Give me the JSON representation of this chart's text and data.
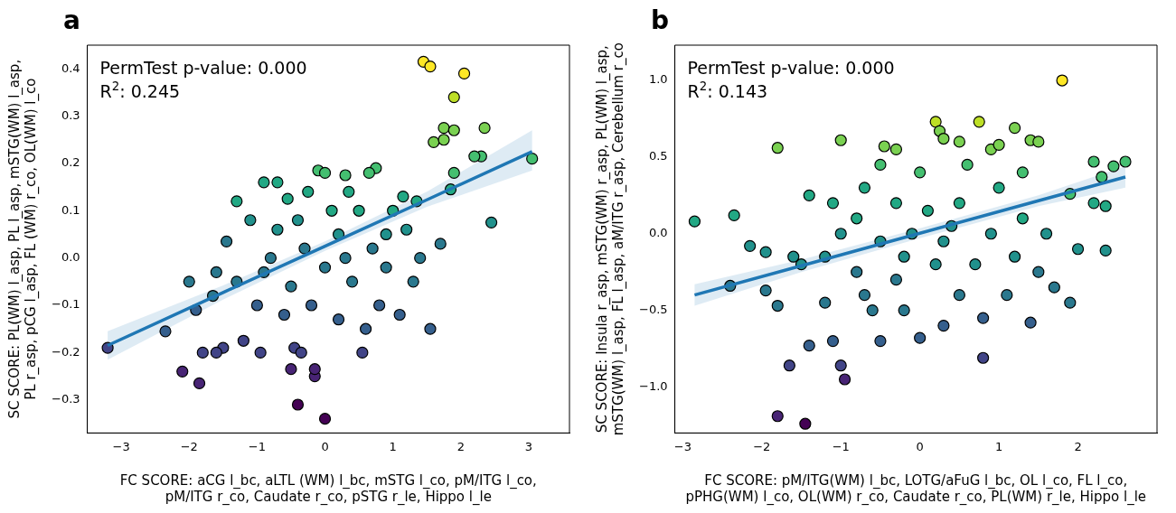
{
  "chart_data": [
    {
      "type": "scatter",
      "title": "a",
      "xlabel": "FC SCORE: aCG l_bc, aLTL (WM) l_bc, mSTG l_co, pM/ITG l_co,\npM/ITG r_co, Caudate r_co, pSTG r_le, Hippo l_le",
      "ylabel": "SC SCORE: PL(WM) l_asp, PL l_asp, mSTG(WM) l_asp,\nPL r_asp, pCG l_asp, FL (WM) r_co, OL(WM) l_co",
      "annotations": [
        "PermTest p-value: 0.000",
        "R$^{2}$: 0.245"
      ],
      "xlim": [
        -3.5,
        3.6
      ],
      "xticks": [
        {
          "value": -3,
          "label": "−3"
        },
        {
          "value": -2,
          "label": "−2"
        },
        {
          "value": -1,
          "label": "−1"
        },
        0,
        1,
        2,
        3
      ],
      "ylim": [
        -0.37,
        0.45
      ],
      "yticks": [
        {
          "value": -0.3,
          "label": "−0.3"
        },
        {
          "value": -0.2,
          "label": "−0.2"
        },
        {
          "value": -0.1,
          "label": "−0.1"
        },
        {
          "value": 0,
          "label": "0.0"
        },
        0.1,
        0.2,
        0.3,
        0.4
      ],
      "grid": false,
      "legend": false,
      "series": [
        {
          "marker": "circle",
          "color": "#21918c",
          "x": [
            1.45,
            1.55,
            2.05,
            1.9,
            1.75,
            1.9,
            2.35,
            2.3,
            2.2,
            1.6,
            1.75,
            3.05,
            2.45,
            1.9,
            1.85,
            -3.2,
            -2.1,
            -1.85,
            -1.8,
            -1.5,
            -1.6,
            -0.4,
            0.0,
            -0.15,
            -0.15,
            -0.5,
            -0.45,
            -0.35,
            -0.95,
            -1.2,
            0.55,
            1.55,
            1.1,
            0.8,
            -2.35,
            -1.9,
            -1.65,
            -1.3,
            -0.9,
            -0.7,
            -0.55,
            -0.1,
            0.0,
            0.3,
            0.75,
            0.65,
            1.15,
            1.35,
            1.2,
            -1.45,
            -1.1,
            -0.7,
            -0.3,
            0.2,
            0.5,
            0.9,
            1.4,
            1.7,
            -1.3,
            -0.9,
            -0.5,
            0,
            0.4,
            0.9,
            1.3,
            -1.0,
            -0.6,
            -0.2,
            0.2,
            0.6,
            -0.8,
            0.1,
            -0.4,
            0.3,
            0.7,
            -1.6,
            -2.0,
            1.0,
            0.35,
            -0.25
          ],
          "values": [
            0.415,
            0.405,
            0.39,
            0.34,
            0.275,
            0.27,
            0.275,
            0.215,
            0.215,
            0.245,
            0.25,
            0.21,
            0.075,
            0.18,
            0.145,
            -0.19,
            -0.24,
            -0.265,
            -0.2,
            -0.19,
            -0.2,
            -0.31,
            -0.34,
            -0.25,
            -0.235,
            -0.235,
            -0.19,
            -0.2,
            -0.2,
            -0.175,
            -0.2,
            -0.15,
            -0.12,
            -0.1,
            -0.155,
            -0.11,
            -0.08,
            0.12,
            0.16,
            0.16,
            0.125,
            0.185,
            0.18,
            0.175,
            0.19,
            0.18,
            0.13,
            0.12,
            0.06,
            0.035,
            0.08,
            0.06,
            0.02,
            0.05,
            0.1,
            0.05,
            0.0,
            0.03,
            -0.05,
            -0.03,
            -0.06,
            -0.02,
            -0.05,
            -0.02,
            -0.05,
            -0.1,
            -0.12,
            -0.1,
            -0.13,
            -0.15,
            0.0,
            0.1,
            0.08,
            0.0,
            0.02,
            -0.03,
            -0.05,
            0.1,
            0.14,
            0.14
          ],
          "colors": [
            "#fde725",
            "#fde725",
            "#fde725",
            "#bddf26",
            "#7ad151",
            "#7ad151",
            "#7ad151",
            "#44bf70",
            "#44bf70",
            "#7ad151",
            "#7ad151",
            "#44bf70",
            "#21918c",
            "#44bf70",
            "#22a884",
            "#414487",
            "#482475",
            "#482475",
            "#414487",
            "#414487",
            "#414487",
            "#440154",
            "#440154",
            "#482475",
            "#482475",
            "#482475",
            "#414487",
            "#414487",
            "#414487",
            "#414487",
            "#414487",
            "#355f8d",
            "#355f8d",
            "#355f8d",
            "#355f8d",
            "#355f8d",
            "#2a788e",
            "#22a884",
            "#22a884",
            "#22a884",
            "#22a884",
            "#44bf70",
            "#44bf70",
            "#44bf70",
            "#44bf70",
            "#44bf70",
            "#22a884",
            "#22a884",
            "#21918c",
            "#2a788e",
            "#21918c",
            "#21918c",
            "#2a788e",
            "#21918c",
            "#22a884",
            "#21918c",
            "#2a788e",
            "#2a788e",
            "#2a788e",
            "#2a788e",
            "#2a788e",
            "#2a788e",
            "#2a788e",
            "#2a788e",
            "#2a788e",
            "#355f8d",
            "#355f8d",
            "#355f8d",
            "#355f8d",
            "#355f8d",
            "#2a788e",
            "#22a884",
            "#21918c",
            "#2a788e",
            "#2a788e",
            "#2a788e",
            "#2a788e",
            "#22a884",
            "#22a884",
            "#22a884"
          ]
        },
        {
          "type": "line",
          "marker": "none",
          "color": "#1f77b4",
          "x": [
            -3.2,
            -1.5,
            0,
            1.5,
            3.05
          ],
          "values": [
            -0.185,
            -0.073,
            0.025,
            0.123,
            0.225
          ],
          "lower": [
            -0.215,
            -0.088,
            0.015,
            0.108,
            0.185
          ],
          "upper": [
            -0.155,
            -0.058,
            0.035,
            0.14,
            0.27
          ]
        }
      ]
    },
    {
      "type": "scatter",
      "title": "b",
      "xlabel": "FC SCORE: pM/ITG(WM) l_bc, LOTG/aFuG l_bc, OL l_co, FL l_co,\npPHG(WM) l_co, OL(WM) r_co, Caudate r_co, PL(WM) r_le, Hippo l_le",
      "ylabel": "SC SCORE: Insula r_asp, mSTG(WM) r_asp, PL(WM) l_asp,\nmSTG(WM) l_asp, FL l_asp, aM/ITG r_asp, Cerebellum r_co",
      "annotations": [
        "PermTest p-value: 0.000",
        "R$^{2}$: 0.143"
      ],
      "xlim": [
        -3.1,
        3.0
      ],
      "xticks": [
        {
          "value": -3,
          "label": "−3"
        },
        {
          "value": -2,
          "label": "−2"
        },
        {
          "value": -1,
          "label": "−1"
        },
        0,
        1,
        2
      ],
      "ylim": [
        -1.3,
        1.23
      ],
      "yticks": [
        {
          "value": -1,
          "label": "−1.0"
        },
        {
          "value": -0.5,
          "label": "−0.5"
        },
        {
          "value": 0,
          "label": "0.0"
        },
        0.5,
        {
          "value": 1,
          "label": "1.0"
        }
      ],
      "grid": false,
      "legend": false,
      "series": [
        {
          "marker": "circle",
          "color": "#21918c",
          "x": [
            1.8,
            0.2,
            0.75,
            1.2,
            0.25,
            0.3,
            0.5,
            1.4,
            1.5,
            -1.0,
            -1.8,
            -0.45,
            -0.3,
            0.9,
            1.0,
            2.6,
            2.45,
            2.2,
            2.3,
            2.2,
            2.35,
            2.35,
            1.9,
            -2.85,
            -2.35,
            -2.4,
            -2.15,
            -1.95,
            -1.95,
            -1.8,
            -1.65,
            -1.8,
            -1.45,
            -1.0,
            -0.95,
            -1.4,
            -1.1,
            -0.5,
            0.0,
            0.3,
            0.8,
            1.4,
            1.7,
            1.5,
            1.1,
            0.5,
            -0.2,
            -0.6,
            -1.2,
            -1.5,
            -1.2,
            -0.8,
            -0.3,
            0.2,
            0.7,
            1.2,
            1.6,
            1.3,
            0.9,
            0.4,
            -0.1,
            -0.5,
            -1.0,
            -1.6,
            -1.4,
            -1.1,
            -0.7,
            -0.3,
            0.1,
            0.5,
            1.0,
            1.3,
            0.0,
            -0.5,
            0.6,
            -0.8,
            0.3,
            -0.2,
            0.8,
            -0.7,
            1.9,
            2.0
          ],
          "values": [
            1.0,
            0.73,
            0.73,
            0.69,
            0.67,
            0.62,
            0.6,
            0.61,
            0.6,
            0.61,
            0.56,
            0.57,
            0.55,
            0.55,
            0.58,
            0.47,
            0.44,
            0.47,
            0.37,
            0.2,
            0.18,
            -0.11,
            0.26,
            0.08,
            0.12,
            -0.34,
            -0.08,
            -0.12,
            -0.37,
            -0.47,
            -0.86,
            -1.19,
            -1.24,
            -0.86,
            -0.95,
            -0.73,
            -0.7,
            -0.7,
            -0.68,
            -0.6,
            -0.81,
            -0.58,
            -0.35,
            -0.25,
            -0.4,
            -0.4,
            -0.5,
            -0.5,
            -0.45,
            -0.2,
            -0.15,
            -0.25,
            -0.3,
            -0.2,
            -0.2,
            -0.15,
            0.0,
            0.1,
            0.0,
            0.05,
            0.0,
            -0.05,
            0.0,
            -0.15,
            0.25,
            0.2,
            0.3,
            0.2,
            0.15,
            0.2,
            0.3,
            0.4,
            0.4,
            0.45,
            0.45,
            0.1,
            -0.05,
            -0.15,
            -0.55,
            -0.4,
            -0.45,
            -0.1
          ],
          "colors": [
            "#fde725",
            "#bddf26",
            "#bddf26",
            "#7ad151",
            "#7ad151",
            "#7ad151",
            "#7ad151",
            "#7ad151",
            "#7ad151",
            "#7ad151",
            "#7ad151",
            "#7ad151",
            "#7ad151",
            "#7ad151",
            "#7ad151",
            "#44bf70",
            "#44bf70",
            "#44bf70",
            "#44bf70",
            "#22a884",
            "#22a884",
            "#21918c",
            "#44bf70",
            "#22a884",
            "#22a884",
            "#2a788e",
            "#21918c",
            "#21918c",
            "#2a788e",
            "#2a788e",
            "#414487",
            "#482475",
            "#440154",
            "#414487",
            "#482475",
            "#355f8d",
            "#355f8d",
            "#355f8d",
            "#355f8d",
            "#355f8d",
            "#414487",
            "#355f8d",
            "#2a788e",
            "#2a788e",
            "#2a788e",
            "#2a788e",
            "#2a788e",
            "#2a788e",
            "#2a788e",
            "#21918c",
            "#21918c",
            "#2a788e",
            "#2a788e",
            "#21918c",
            "#21918c",
            "#21918c",
            "#21918c",
            "#22a884",
            "#21918c",
            "#21918c",
            "#21918c",
            "#21918c",
            "#21918c",
            "#21918c",
            "#22a884",
            "#22a884",
            "#22a884",
            "#22a884",
            "#22a884",
            "#22a884",
            "#22a884",
            "#44bf70",
            "#44bf70",
            "#44bf70",
            "#44bf70",
            "#22a884",
            "#21918c",
            "#21918c",
            "#355f8d",
            "#2a788e",
            "#2a788e",
            "#21918c"
          ]
        },
        {
          "type": "line",
          "marker": "none",
          "color": "#1f77b4",
          "x": [
            -2.85,
            -1.5,
            0,
            1.5,
            2.6
          ],
          "values": [
            -0.4,
            -0.209,
            0.003,
            0.215,
            0.37
          ],
          "lower": [
            -0.47,
            -0.25,
            -0.03,
            0.18,
            0.3
          ],
          "upper": [
            -0.33,
            -0.17,
            0.035,
            0.25,
            0.44
          ]
        }
      ]
    }
  ]
}
